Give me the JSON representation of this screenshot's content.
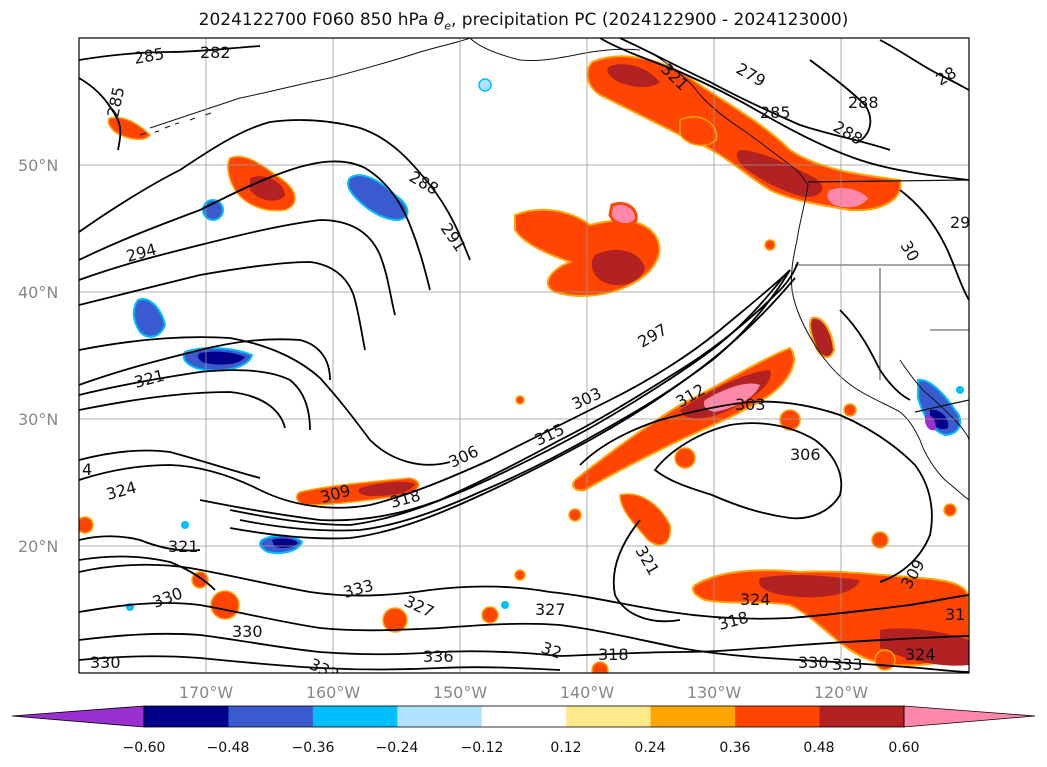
{
  "title": {
    "run": "2024122700",
    "forecast": "F060",
    "level": "850 hPa",
    "variable_symbol": "θ",
    "variable_subscript": "e",
    "rest": ", precipitation PC (2024122900 - 2024123000)"
  },
  "lat_labels": [
    "50°N",
    "40°N",
    "30°N",
    "20°N"
  ],
  "lon_labels": [
    "170°W",
    "160°W",
    "150°W",
    "140°W",
    "130°W",
    "120°W"
  ],
  "contour_labels": [
    "285",
    "282",
    "285",
    "288",
    "291",
    "294",
    "297",
    "303",
    "306",
    "309",
    "312",
    "315",
    "318",
    "321",
    "324",
    "327",
    "330",
    "333",
    "336",
    "279",
    "285",
    "288",
    "288",
    "303",
    "306",
    "309",
    "318",
    "321",
    "324",
    "330",
    "333",
    "28",
    "29",
    "30",
    "31",
    "4",
    "321",
    "318",
    "32",
    "327",
    "330",
    "330",
    "327",
    "336",
    "333",
    "324",
    "321"
  ],
  "colorbar": {
    "ticks": [
      "−0.60",
      "−0.48",
      "−0.36",
      "−0.24",
      "−0.12",
      "0.12",
      "0.24",
      "0.36",
      "0.48",
      "0.60"
    ],
    "colors": [
      "#9b30d0",
      "#00008b",
      "#3a5bd0",
      "#00bfff",
      "#b0e2ff",
      "#ffffff",
      "#ffe98a",
      "#ffa500",
      "#ff4500",
      "#b22222",
      "#ff88aa"
    ]
  },
  "fill_colors": {
    "pink": "#ff88aa",
    "darkred": "#b22222",
    "orange_red": "#ff4500",
    "orange": "#ffa500",
    "yellow": "#ffe98a",
    "navy": "#00008b",
    "blue": "#3a5bd0",
    "cyan": "#00bfff",
    "lightblue": "#b0e2ff",
    "purple": "#9b30d0"
  }
}
